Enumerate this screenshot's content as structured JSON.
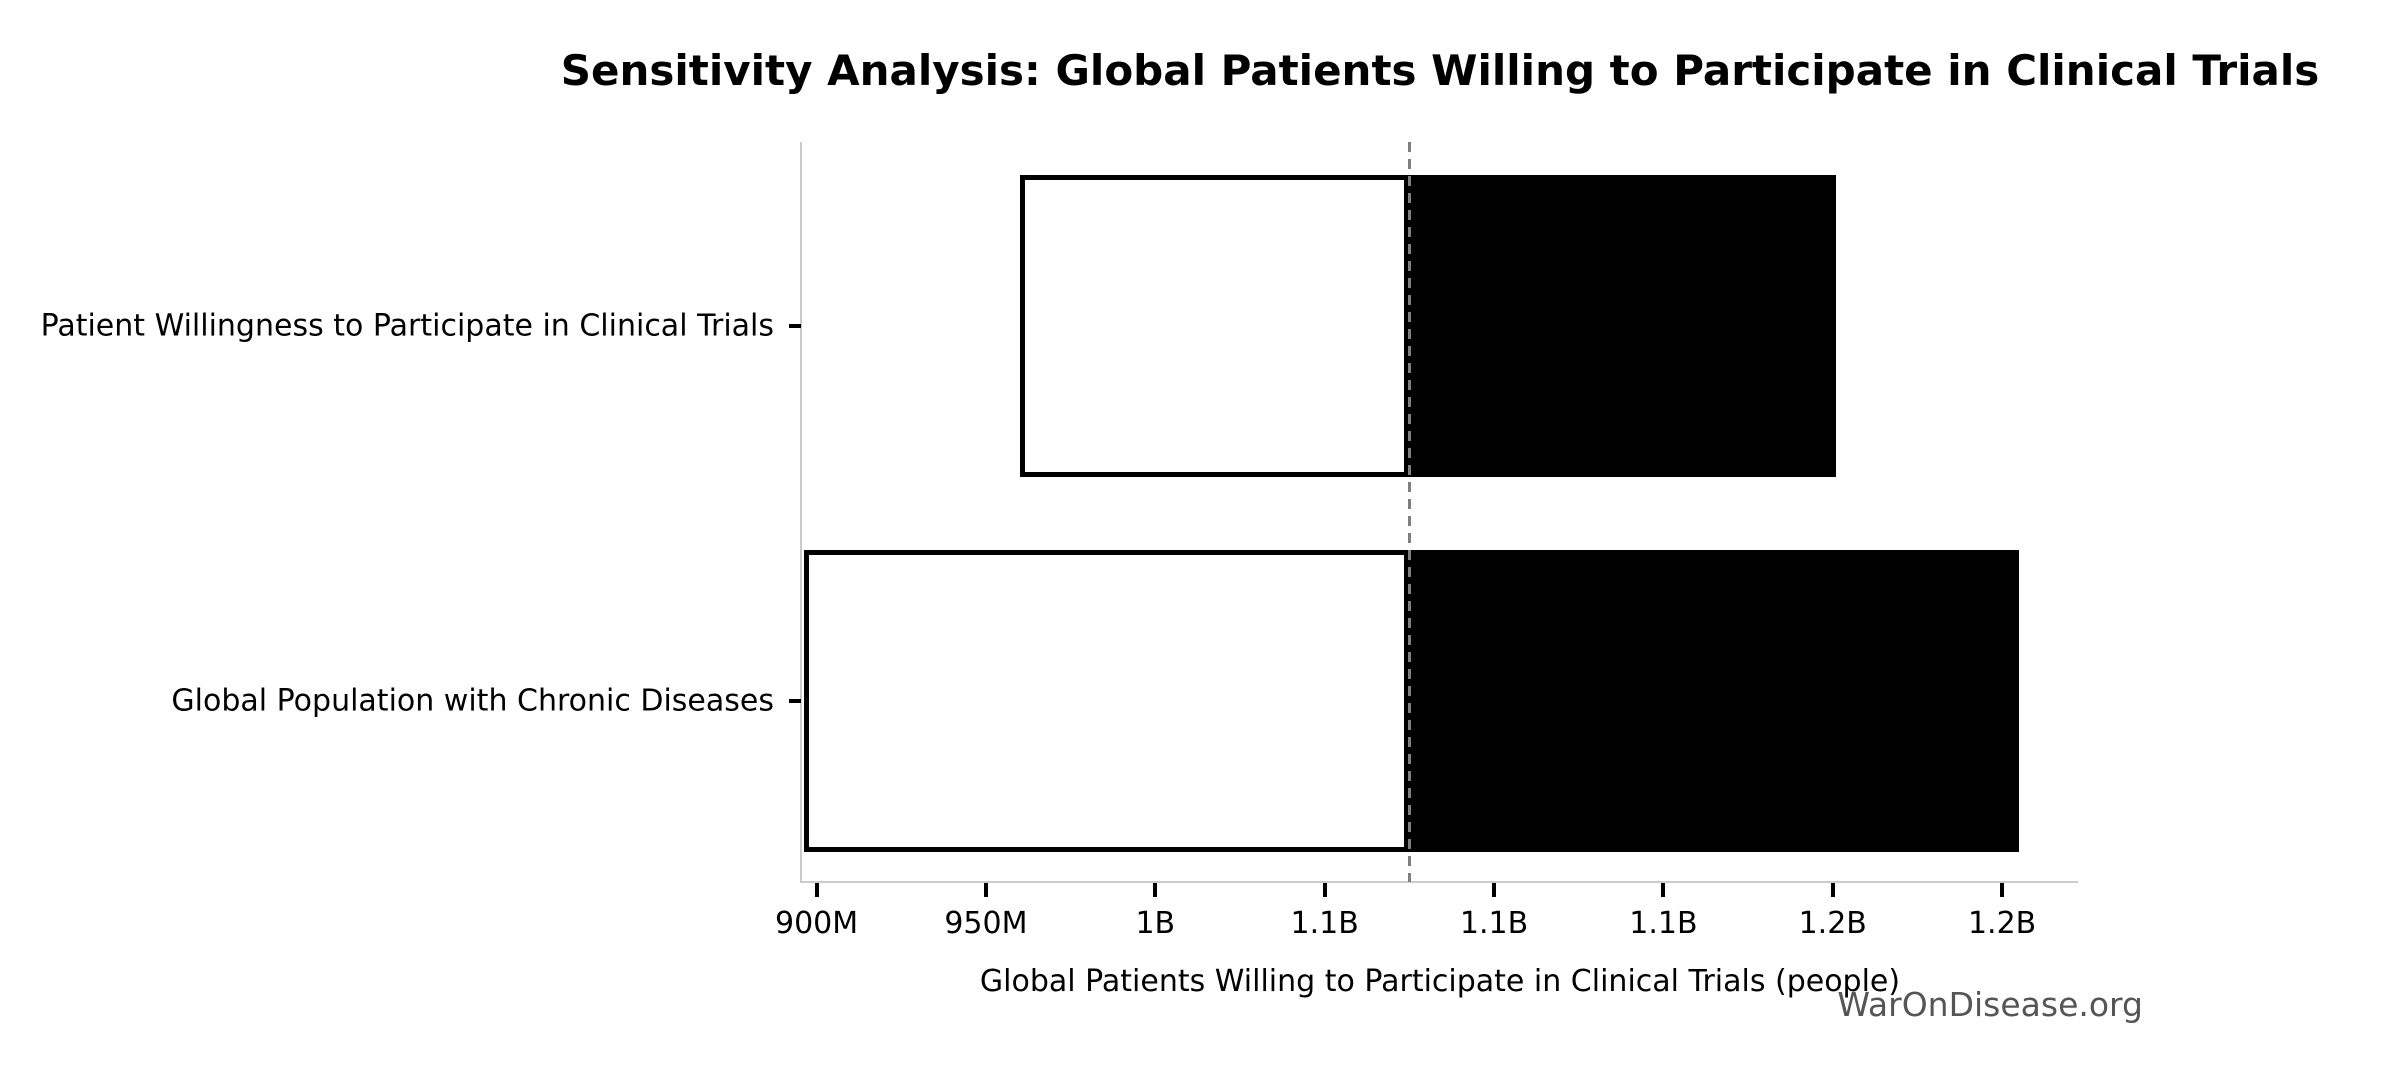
{
  "chart_data": {
    "type": "bar",
    "subtype": "tornado-sensitivity",
    "orientation": "horizontal",
    "title": "Sensitivity Analysis: Global Patients Willing to Participate in Clinical Trials",
    "xlabel": "Global Patients Willing to Participate in Clinical Trials (people)",
    "values_in": "billions of people",
    "base_value": 1.075,
    "xlim": [
      0.8957,
      1.2724
    ],
    "grid": false,
    "legend": null,
    "categories": [
      "Patient Willingness to Participate in Clinical Trials",
      "Global Population with Chronic Diseases"
    ],
    "bars": [
      {
        "category": "Patient Willingness to Participate in Clinical Trials",
        "low": 0.96,
        "high": 1.201
      },
      {
        "category": "Global Population with Chronic Diseases",
        "low": 0.8963,
        "high": 1.2551
      }
    ],
    "ticks": [
      {
        "value": 0.9,
        "label": "900M"
      },
      {
        "value": 0.95,
        "label": "950M"
      },
      {
        "value": 1.0,
        "label": "1B"
      },
      {
        "value": 1.05,
        "label": "1.1B"
      },
      {
        "value": 1.1,
        "label": "1.1B"
      },
      {
        "value": 1.15,
        "label": "1.1B"
      },
      {
        "value": 1.2,
        "label": "1.2B"
      },
      {
        "value": 1.25,
        "label": "1.2B"
      }
    ],
    "styles": {
      "low_segment_fill": "#ffffff",
      "high_segment_fill": "#000000",
      "bar_edge_color": "#000000",
      "baseline_color": "#7f7f7f",
      "spine_color": "#cccccc",
      "tick_color": "#000000",
      "text_color": "#000000",
      "watermark_color": "#555555",
      "background": "#ffffff"
    },
    "watermark": "WarOnDisease.org"
  }
}
